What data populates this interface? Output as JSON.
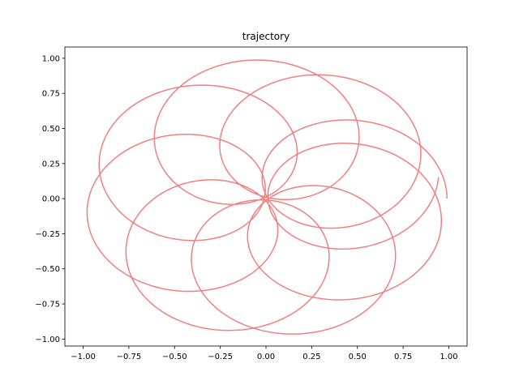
{
  "chart_data": {
    "type": "line",
    "title": "trajectory",
    "xlabel": "",
    "ylabel": "",
    "xlim": [
      -1.1,
      1.1
    ],
    "ylim": [
      -1.05,
      1.08
    ],
    "xticks": [
      -1.0,
      -0.75,
      -0.5,
      -0.25,
      0.0,
      0.25,
      0.5,
      0.75,
      1.0
    ],
    "xtick_labels": [
      "−1.00",
      "−0.75",
      "−0.50",
      "−0.25",
      "0.00",
      "0.25",
      "0.50",
      "0.75",
      "1.00"
    ],
    "yticks": [
      1.0,
      0.75,
      0.5,
      0.25,
      0.0,
      -0.25,
      -0.5,
      -0.75,
      -1.0
    ],
    "ytick_labels": [
      "1.00",
      "0.75",
      "0.50",
      "0.25",
      "0.00",
      "−0.25",
      "−0.50",
      "−0.75",
      "−1.00"
    ],
    "grid": false,
    "legend": "none",
    "series": [
      {
        "color": "#f08080",
        "curve": "precessing-ellipse-rosette",
        "start": [
          1.0,
          0.0
        ],
        "end": [
          0.95,
          0.22
        ],
        "semi_major": 1.0,
        "semi_minor": 0.32,
        "x_range": [
          -0.98,
          1.0
        ],
        "y_range": [
          -0.97,
          0.99
        ],
        "loops": 8
      }
    ]
  }
}
